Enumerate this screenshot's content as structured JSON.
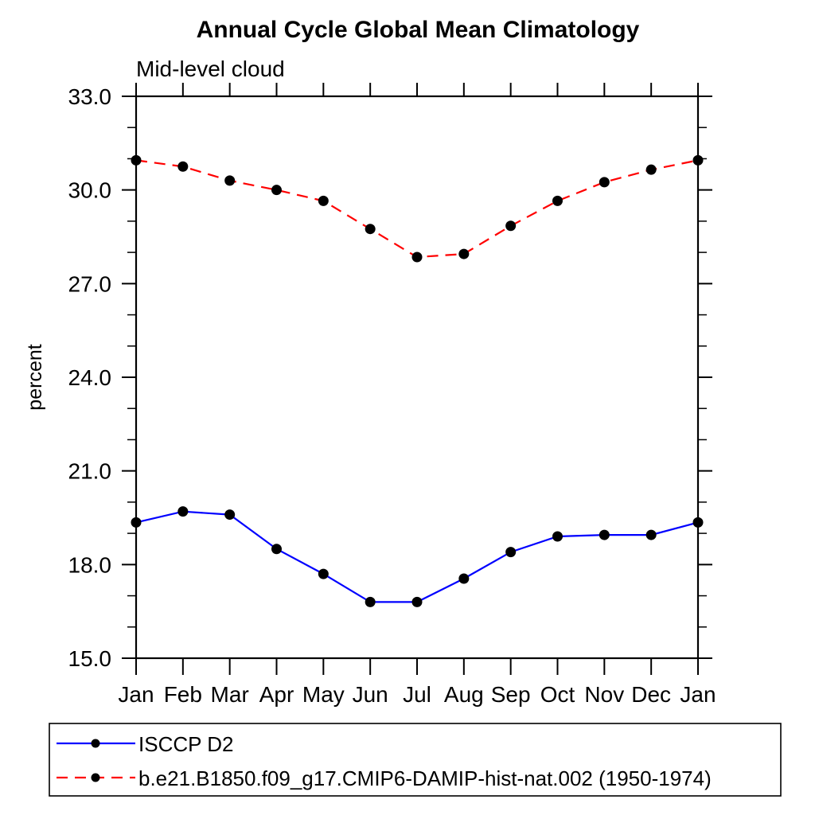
{
  "chart_data": {
    "type": "line",
    "title": "Annual Cycle Global Mean Climatology",
    "subtitle": "Mid-level cloud",
    "xlabel": "",
    "ylabel": "percent",
    "ylim": [
      15.0,
      33.0
    ],
    "yticks_major": [
      15.0,
      18.0,
      21.0,
      24.0,
      27.0,
      30.0,
      33.0
    ],
    "ytick_labels": [
      "15.0",
      "18.0",
      "21.0",
      "24.0",
      "27.0",
      "30.0",
      "33.0"
    ],
    "ytick_minor_step": 1.0,
    "grid": false,
    "legend_position": "bottom-left-box",
    "categories": [
      "Jan",
      "Feb",
      "Mar",
      "Apr",
      "May",
      "Jun",
      "Jul",
      "Aug",
      "Sep",
      "Oct",
      "Nov",
      "Dec",
      "Jan"
    ],
    "series": [
      {
        "name": "ISCCP D2",
        "color": "#0000ff",
        "line_style": "solid",
        "marker": "filled-circle",
        "marker_color": "#000000",
        "values": [
          19.35,
          19.7,
          19.6,
          18.5,
          17.7,
          16.8,
          16.8,
          17.55,
          18.4,
          18.9,
          18.95,
          18.95,
          19.35
        ]
      },
      {
        "name": "b.e21.B1850.f09_g17.CMIP6-DAMIP-hist-nat.002 (1950-1974)",
        "color": "#ff0000",
        "line_style": "dashed",
        "marker": "filled-circle",
        "marker_color": "#000000",
        "values": [
          30.95,
          30.75,
          30.3,
          30.0,
          29.65,
          28.75,
          27.85,
          27.95,
          28.85,
          29.65,
          30.25,
          30.65,
          30.95
        ]
      }
    ],
    "colors": {
      "axis": "#000000",
      "text": "#000000",
      "background": "#ffffff"
    }
  }
}
